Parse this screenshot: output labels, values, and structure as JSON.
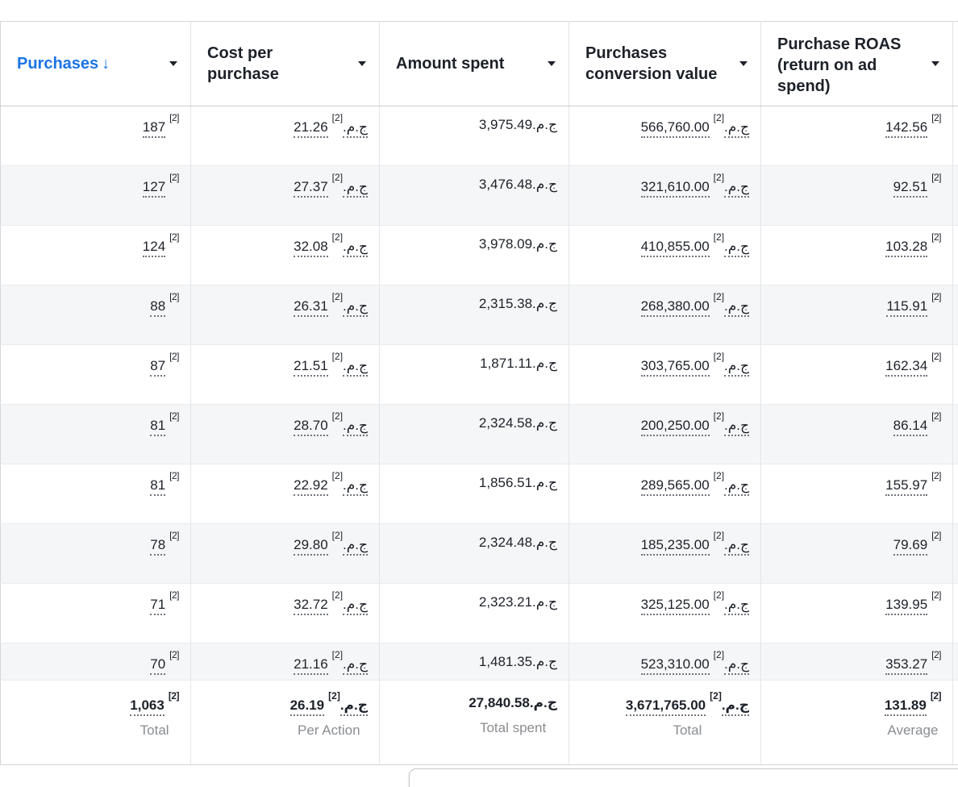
{
  "table": {
    "currency": "ج.م.",
    "footnote_marker": "[2]",
    "colors": {
      "sorted_header_blue": "#1b74e4",
      "text": "#1d2129",
      "muted_label": "#8a8d91",
      "zebra_stripe": "#f5f6f7",
      "border": "#dfe2e6"
    },
    "columns": [
      {
        "key": "purchases",
        "label": "Purchases",
        "sorted": true,
        "sort_arrow": "↓",
        "has_currency": false,
        "has_footnote": true,
        "underline": true
      },
      {
        "key": "cost_per_purchase",
        "label": "Cost per purchase",
        "sorted": false,
        "sort_arrow": "",
        "has_currency": true,
        "has_footnote": true,
        "underline": true
      },
      {
        "key": "amount_spent",
        "label": "Amount spent",
        "sorted": false,
        "sort_arrow": "",
        "has_currency": true,
        "has_footnote": false,
        "underline": false
      },
      {
        "key": "conversion_value",
        "label": "Purchases conversion value",
        "sorted": false,
        "sort_arrow": "",
        "has_currency": true,
        "has_footnote": true,
        "underline": true
      },
      {
        "key": "roas",
        "label": "Purchase ROAS (return on ad spend)",
        "sorted": false,
        "sort_arrow": "",
        "has_currency": false,
        "has_footnote": true,
        "underline": true
      }
    ],
    "rows": [
      [
        "187",
        "21.26",
        "3,975.49",
        "566,760.00",
        "142.56"
      ],
      [
        "127",
        "27.37",
        "3,476.48",
        "321,610.00",
        "92.51"
      ],
      [
        "124",
        "32.08",
        "3,978.09",
        "410,855.00",
        "103.28"
      ],
      [
        "88",
        "26.31",
        "2,315.38",
        "268,380.00",
        "115.91"
      ],
      [
        "87",
        "21.51",
        "1,871.11",
        "303,765.00",
        "162.34"
      ],
      [
        "81",
        "28.70",
        "2,324.58",
        "200,250.00",
        "86.14"
      ],
      [
        "81",
        "22.92",
        "1,856.51",
        "289,565.00",
        "155.97"
      ],
      [
        "78",
        "29.80",
        "2,324.48",
        "185,235.00",
        "79.69"
      ],
      [
        "71",
        "32.72",
        "2,323.21",
        "325,125.00",
        "139.95"
      ],
      [
        "70",
        "21.16",
        "1,481.35",
        "523,310.00",
        "353.27"
      ]
    ],
    "totals": {
      "values": [
        "1,063",
        "26.19",
        "27,840.58",
        "3,671,765.00",
        "131.89"
      ],
      "labels": [
        "Total",
        "Per Action",
        "Total spent",
        "Total",
        "Average"
      ]
    }
  }
}
